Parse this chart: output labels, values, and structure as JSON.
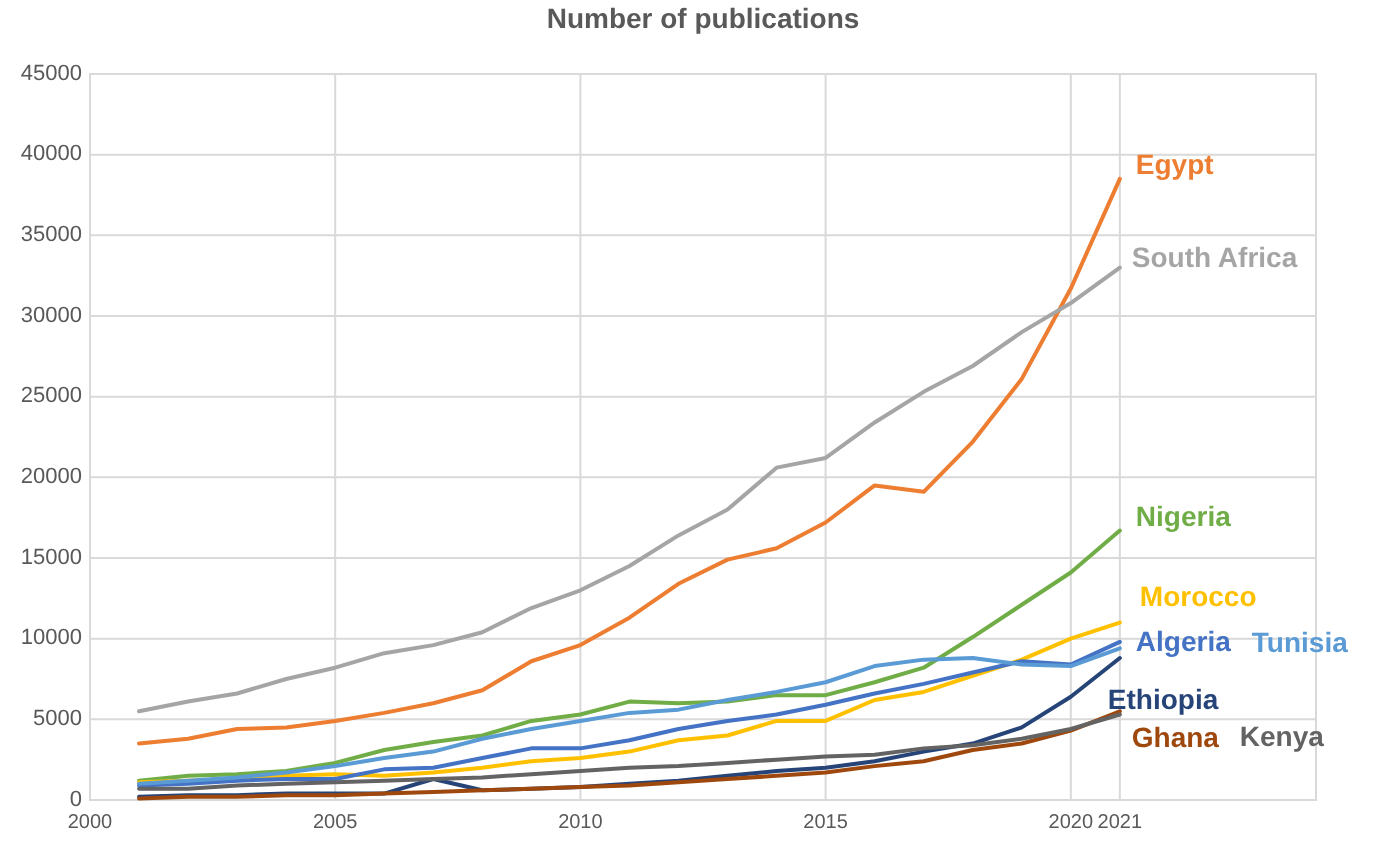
{
  "chart_data": {
    "type": "line",
    "title": "Number of publications",
    "x": [
      2001,
      2002,
      2003,
      2004,
      2005,
      2006,
      2007,
      2008,
      2009,
      2010,
      2011,
      2012,
      2013,
      2014,
      2015,
      2016,
      2017,
      2018,
      2019,
      2020,
      2021
    ],
    "xlim": [
      2000,
      2025
    ],
    "xticks": [
      2000,
      2005,
      2010,
      2015,
      2020,
      2021
    ],
    "ylim": [
      0,
      45000
    ],
    "yticks": [
      0,
      5000,
      10000,
      15000,
      20000,
      25000,
      30000,
      35000,
      40000,
      45000
    ],
    "grid": true,
    "marker": "none",
    "line_style": "solid",
    "series": [
      {
        "name": "Egypt",
        "color": "#ed7d31",
        "values": [
          3500,
          3800,
          4400,
          4500,
          4900,
          5400,
          6000,
          6800,
          8600,
          9600,
          11300,
          13400,
          14900,
          15600,
          17200,
          19500,
          19100,
          22200,
          26100,
          31700,
          38500
        ]
      },
      {
        "name": "South Africa",
        "color": "#a5a5a5",
        "values": [
          5500,
          6100,
          6600,
          7500,
          8200,
          9100,
          9600,
          10400,
          11900,
          13000,
          14500,
          16400,
          18000,
          20600,
          21200,
          23400,
          25300,
          26900,
          29000,
          30800,
          33000
        ]
      },
      {
        "name": "Nigeria",
        "color": "#70ad47",
        "values": [
          1200,
          1500,
          1600,
          1800,
          2300,
          3100,
          3600,
          4000,
          4900,
          5300,
          6100,
          6000,
          6100,
          6500,
          6500,
          7300,
          8200,
          10100,
          12100,
          14100,
          16700
        ]
      },
      {
        "name": "Morocco",
        "color": "#ffc000",
        "values": [
          1100,
          1200,
          1300,
          1500,
          1600,
          1500,
          1700,
          2000,
          2400,
          2600,
          3000,
          3700,
          4000,
          4900,
          4900,
          6200,
          6700,
          7700,
          8700,
          10000,
          11000
        ]
      },
      {
        "name": "Algeria",
        "color": "#4472c4",
        "values": [
          900,
          1000,
          1200,
          1300,
          1300,
          1900,
          2000,
          2600,
          3200,
          3200,
          3700,
          4400,
          4900,
          5300,
          5900,
          6600,
          7200,
          7900,
          8600,
          8400,
          9800
        ]
      },
      {
        "name": "Tunisia",
        "color": "#5b9bd5",
        "values": [
          1000,
          1200,
          1400,
          1700,
          2100,
          2600,
          3000,
          3800,
          4400,
          4900,
          5400,
          5600,
          6200,
          6700,
          7300,
          8300,
          8700,
          8800,
          8400,
          8300,
          9400
        ]
      },
      {
        "name": "Ethiopia",
        "color": "#264478",
        "values": [
          200,
          300,
          300,
          400,
          400,
          400,
          1300,
          600,
          700,
          800,
          1000,
          1200,
          1500,
          1800,
          2000,
          2400,
          3000,
          3500,
          4500,
          6400,
          8800
        ]
      },
      {
        "name": "Ghana",
        "color": "#9e480e",
        "values": [
          100,
          200,
          200,
          300,
          300,
          400,
          500,
          600,
          700,
          800,
          900,
          1100,
          1300,
          1500,
          1700,
          2100,
          2400,
          3100,
          3500,
          4300,
          5500
        ]
      },
      {
        "name": "Kenya",
        "color": "#636363",
        "values": [
          700,
          700,
          900,
          1000,
          1100,
          1200,
          1300,
          1400,
          1600,
          1800,
          2000,
          2100,
          2300,
          2500,
          2700,
          2800,
          3200,
          3400,
          3800,
          4400,
          5300
        ]
      }
    ]
  }
}
